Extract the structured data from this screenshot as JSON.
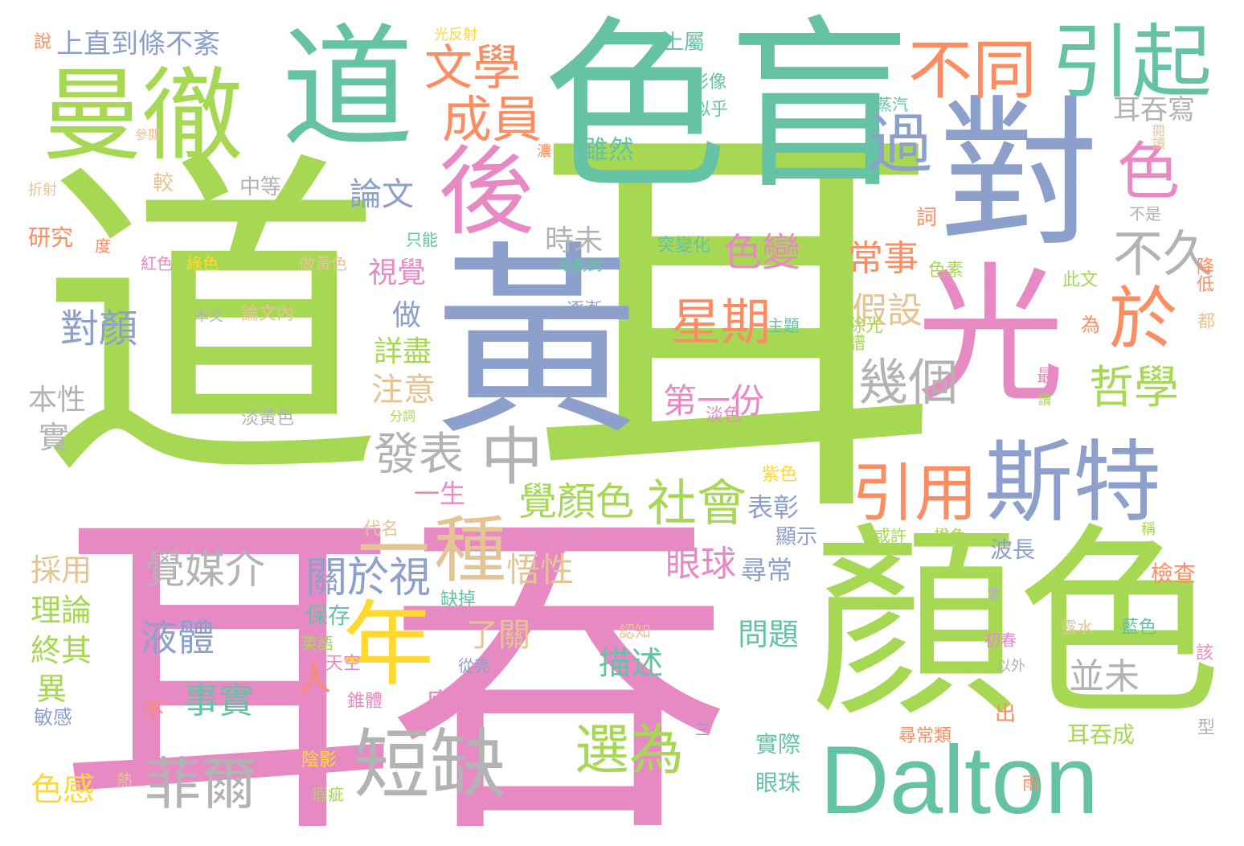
{
  "words": [
    {
      "text": "道",
      "color": "#a6d854"
    },
    {
      "text": "耳",
      "color": "#a6d854"
    },
    {
      "text": "耳吞",
      "color": "#e78ac3"
    },
    {
      "text": "色盲",
      "color": "#66c2a5"
    },
    {
      "text": "黃",
      "color": "#8da0cb"
    },
    {
      "text": "顏色",
      "color": "#a6d854"
    },
    {
      "text": "道",
      "color": "#66c2a5"
    },
    {
      "text": "對",
      "color": "#8da0cb"
    },
    {
      "text": "光",
      "color": "#e78ac3"
    },
    {
      "text": "Dalton",
      "color": "#66c2a5"
    },
    {
      "text": "曼徹",
      "color": "#a6d854"
    },
    {
      "text": "斯特",
      "color": "#8da0cb"
    },
    {
      "text": "後",
      "color": "#e78ac3"
    },
    {
      "text": "年",
      "color": "#ffd92f"
    },
    {
      "text": "短缺",
      "color": "#b3b3b3"
    },
    {
      "text": "不同",
      "color": "#fc8d62"
    },
    {
      "text": "引起",
      "color": "#66c2a5"
    },
    {
      "text": "種",
      "color": "#e5c494"
    },
    {
      "text": "一",
      "color": "#e5c494"
    },
    {
      "text": "中",
      "color": "#b3b3b3"
    },
    {
      "text": "菲爾",
      "color": "#b3b3b3"
    },
    {
      "text": "引用",
      "color": "#fc8d62"
    },
    {
      "text": "於",
      "color": "#fc8d62"
    },
    {
      "text": "色",
      "color": "#e78ac3"
    },
    {
      "text": "文學",
      "color": "#fc8d62"
    },
    {
      "text": "成員",
      "color": "#fc8d62"
    },
    {
      "text": "過",
      "color": "#8da0cb"
    },
    {
      "text": "選為",
      "color": "#a6d854"
    },
    {
      "text": "發表",
      "color": "#b3b3b3"
    },
    {
      "text": "社會",
      "color": "#a6d854"
    },
    {
      "text": "星期",
      "color": "#fc8d62"
    },
    {
      "text": "哲學",
      "color": "#a6d854"
    },
    {
      "text": "幾個",
      "color": "#b3b3b3"
    },
    {
      "text": "不久",
      "color": "#b3b3b3"
    },
    {
      "text": "覺顏色",
      "color": "#a6d854"
    },
    {
      "text": "關於視",
      "color": "#8da0cb"
    },
    {
      "text": "覺媒介",
      "color": "#b3b3b3"
    },
    {
      "text": "上直到條不紊",
      "color": "#8da0cb"
    },
    {
      "text": "論文",
      "color": "#8da0cb"
    },
    {
      "text": "色變",
      "color": "#e78ac3"
    },
    {
      "text": "時未",
      "color": "#b3b3b3"
    },
    {
      "text": "常事",
      "color": "#fc8d62"
    },
    {
      "text": "假設",
      "color": "#e5c494"
    },
    {
      "text": "視覺",
      "color": "#e78ac3"
    },
    {
      "text": "對顏",
      "color": "#8da0cb"
    },
    {
      "text": "做",
      "color": "#8da0cb"
    },
    {
      "text": "詳盡",
      "color": "#a6d854"
    },
    {
      "text": "注意",
      "color": "#e5c494"
    },
    {
      "text": "第一份",
      "color": "#e78ac3"
    },
    {
      "text": "液體",
      "color": "#8da0cb"
    },
    {
      "text": "悟性",
      "color": "#e5c494"
    },
    {
      "text": "眼球",
      "color": "#e78ac3"
    },
    {
      "text": "尋常",
      "color": "#8da0cb"
    },
    {
      "text": "表彰",
      "color": "#8da0cb"
    },
    {
      "text": "事實",
      "color": "#66c2a5"
    },
    {
      "text": "描述",
      "color": "#66c2a5"
    },
    {
      "text": "廣被",
      "color": "#e78ac3"
    },
    {
      "text": "並未",
      "color": "#b3b3b3"
    },
    {
      "text": "耳吞寫",
      "color": "#b3b3b3"
    },
    {
      "text": "雖然",
      "color": "#66c2a5"
    },
    {
      "text": "一生",
      "color": "#e78ac3"
    },
    {
      "text": "人",
      "color": "#fc8d62"
    },
    {
      "text": "了關",
      "color": "#e5c494"
    },
    {
      "text": "問題",
      "color": "#66c2a5"
    },
    {
      "text": "採用",
      "color": "#e5c494"
    },
    {
      "text": "理論",
      "color": "#a6d854"
    },
    {
      "text": "終其",
      "color": "#a6d854"
    },
    {
      "text": "異",
      "color": "#a6d854"
    },
    {
      "text": "色感",
      "color": "#ffd92f"
    },
    {
      "text": "實",
      "color": "#b3b3b3"
    },
    {
      "text": "本性",
      "color": "#b3b3b3"
    },
    {
      "text": "研究",
      "color": "#fc8d62"
    },
    {
      "text": "中等",
      "color": "#b3b3b3"
    },
    {
      "text": "較",
      "color": "#e5c494"
    },
    {
      "text": "上屬",
      "color": "#66c2a5"
    },
    {
      "text": "影像",
      "color": "#66c2a5"
    },
    {
      "text": "似乎",
      "color": "#66c2a5"
    },
    {
      "text": "蒸汽",
      "color": "#66c2a5"
    },
    {
      "text": "詞",
      "color": "#fc8d62"
    },
    {
      "text": "突變化",
      "color": "#66c2a5"
    },
    {
      "text": "助動詞",
      "color": "#66c2a5"
    },
    {
      "text": "色素",
      "color": "#a6d854"
    },
    {
      "text": "此文",
      "color": "#a6d854"
    },
    {
      "text": "降低",
      "color": "#fc8d62"
    },
    {
      "text": "逐漸",
      "color": "#8da0cb"
    },
    {
      "text": "主題",
      "color": "#66c2a5"
    },
    {
      "text": "除光譜",
      "color": "#a6d854"
    },
    {
      "text": "為",
      "color": "#fc8d62"
    },
    {
      "text": "都",
      "color": "#e5c494"
    },
    {
      "text": "最",
      "color": "#e78ac3"
    },
    {
      "text": "讀",
      "color": "#a6d854"
    },
    {
      "text": "淡黃色",
      "color": "#b3b3b3"
    },
    {
      "text": "淡色",
      "color": "#e78ac3"
    },
    {
      "text": "分詞",
      "color": "#a6d854"
    },
    {
      "text": "紫色",
      "color": "#ffd92f"
    },
    {
      "text": "代名",
      "color": "#e5c494"
    },
    {
      "text": "顯示",
      "color": "#8da0cb"
    },
    {
      "text": "或許",
      "color": "#a6d854"
    },
    {
      "text": "橙色",
      "color": "#a6d854"
    },
    {
      "text": "稱",
      "color": "#a6d854"
    },
    {
      "text": "波長",
      "color": "#8da0cb"
    },
    {
      "text": "檢查",
      "color": "#fc8d62"
    },
    {
      "text": "缺掉",
      "color": "#66c2a5"
    },
    {
      "text": "保存",
      "color": "#66c2a5"
    },
    {
      "text": "英語",
      "color": "#a6d854"
    },
    {
      "text": "天空",
      "color": "#e78ac3"
    },
    {
      "text": "從亮",
      "color": "#8da0cb"
    },
    {
      "text": "認知",
      "color": "#e5c494"
    },
    {
      "text": "露水",
      "color": "#e5c494"
    },
    {
      "text": "藍色",
      "color": "#66c2a5"
    },
    {
      "text": "初春",
      "color": "#e78ac3"
    },
    {
      "text": "以外",
      "color": "#b3b3b3"
    },
    {
      "text": "該",
      "color": "#e78ac3"
    },
    {
      "text": "會",
      "color": "#b3b3b3"
    },
    {
      "text": "錐體",
      "color": "#e78ac3"
    },
    {
      "text": "不",
      "color": "#fc8d62"
    },
    {
      "text": "敏感",
      "color": "#8da0cb"
    },
    {
      "text": "出",
      "color": "#fc8d62"
    },
    {
      "text": "尋常類",
      "color": "#fc8d62"
    },
    {
      "text": "耳吞成",
      "color": "#a6d854"
    },
    {
      "text": "型",
      "color": "#b3b3b3"
    },
    {
      "text": "三",
      "color": "#8da0cb"
    },
    {
      "text": "實際",
      "color": "#66c2a5"
    },
    {
      "text": "眼珠",
      "color": "#66c2a5"
    },
    {
      "text": "陰影",
      "color": "#ffd92f"
    },
    {
      "text": "瑕疵",
      "color": "#a6d854"
    },
    {
      "text": "熱",
      "color": "#e5c494"
    },
    {
      "text": "雨",
      "color": "#fc8d62"
    },
    {
      "text": "說",
      "color": "#fc8d62"
    },
    {
      "text": "光反射",
      "color": "#ffd92f"
    },
    {
      "text": "參閱",
      "color": "#e5c494"
    },
    {
      "text": "濃",
      "color": "#fc8d62"
    },
    {
      "text": "閱讀",
      "color": "#e5c494"
    },
    {
      "text": "折射",
      "color": "#e5c494"
    },
    {
      "text": "不是",
      "color": "#b3b3b3"
    },
    {
      "text": "只能",
      "color": "#66c2a5"
    },
    {
      "text": "度",
      "color": "#fc8d62"
    },
    {
      "text": "紅色",
      "color": "#e78ac3"
    },
    {
      "text": "綠色",
      "color": "#ffd92f"
    },
    {
      "text": "做黃色",
      "color": "#e5c494"
    },
    {
      "text": "本文",
      "color": "#b3b3b3"
    },
    {
      "text": "論文內",
      "color": "#e5c494"
    }
  ]
}
